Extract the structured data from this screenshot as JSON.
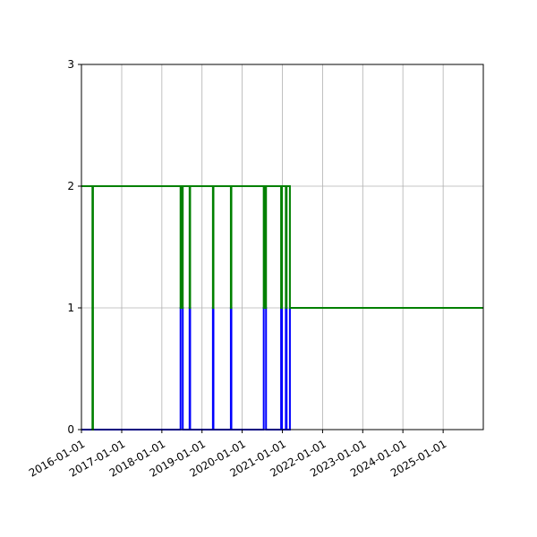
{
  "chart_data": {
    "type": "line",
    "title": "",
    "xlabel": "",
    "ylabel": "",
    "xlim": [
      "2016-01-01",
      "2026-01-01"
    ],
    "ylim": [
      0,
      3
    ],
    "grid": true,
    "x_ticks": [
      "2016-01-01",
      "2017-01-01",
      "2018-01-01",
      "2019-01-01",
      "2020-01-01",
      "2021-01-01",
      "2022-01-01",
      "2023-01-01",
      "2024-01-01",
      "2025-01-01"
    ],
    "y_ticks": [
      0,
      1,
      2,
      3
    ],
    "series": [
      {
        "color": "#0000ff",
        "drawstyle": "steps-post",
        "points": [
          [
            "2016-01-01",
            0
          ],
          [
            "2016-04-10",
            0
          ],
          [
            "2018-06-20",
            0
          ],
          [
            "2018-06-20",
            1
          ],
          [
            "2018-07-10",
            1
          ],
          [
            "2018-07-10",
            0
          ],
          [
            "2018-09-10",
            0
          ],
          [
            "2018-09-10",
            1
          ],
          [
            "2018-09-15",
            1
          ],
          [
            "2018-09-15",
            0
          ],
          [
            "2019-04-10",
            0
          ],
          [
            "2019-04-10",
            1
          ],
          [
            "2019-04-15",
            1
          ],
          [
            "2019-04-15",
            0
          ],
          [
            "2019-09-20",
            0
          ],
          [
            "2019-09-20",
            1
          ],
          [
            "2019-09-25",
            1
          ],
          [
            "2019-09-25",
            0
          ],
          [
            "2020-07-15",
            0
          ],
          [
            "2020-07-15",
            1
          ],
          [
            "2020-08-05",
            1
          ],
          [
            "2020-08-05",
            0
          ],
          [
            "2020-12-20",
            0
          ],
          [
            "2020-12-20",
            1
          ],
          [
            "2020-12-28",
            1
          ],
          [
            "2020-12-28",
            0
          ],
          [
            "2021-02-01",
            0
          ],
          [
            "2021-02-01",
            1
          ],
          [
            "2021-02-08",
            1
          ],
          [
            "2021-02-08",
            0
          ],
          [
            "2021-03-10",
            0
          ],
          [
            "2021-03-10",
            1
          ]
        ]
      },
      {
        "color": "#008000",
        "drawstyle": "steps-post",
        "points": [
          [
            "2016-01-01",
            2
          ],
          [
            "2016-04-10",
            2
          ],
          [
            "2016-04-10",
            0
          ],
          [
            "2016-04-15",
            0
          ],
          [
            "2016-04-15",
            2
          ],
          [
            "2018-06-20",
            2
          ],
          [
            "2018-06-20",
            1
          ],
          [
            "2018-06-25",
            1
          ],
          [
            "2018-06-25",
            2
          ],
          [
            "2018-06-28",
            2
          ],
          [
            "2018-06-28",
            1
          ],
          [
            "2018-07-02",
            1
          ],
          [
            "2018-07-02",
            2
          ],
          [
            "2018-07-05",
            2
          ],
          [
            "2018-07-05",
            1
          ],
          [
            "2018-07-10",
            1
          ],
          [
            "2018-07-10",
            2
          ],
          [
            "2018-09-10",
            2
          ],
          [
            "2018-09-10",
            1
          ],
          [
            "2018-09-15",
            1
          ],
          [
            "2018-09-15",
            2
          ],
          [
            "2019-04-10",
            2
          ],
          [
            "2019-04-10",
            1
          ],
          [
            "2019-04-15",
            1
          ],
          [
            "2019-04-15",
            2
          ],
          [
            "2019-09-20",
            2
          ],
          [
            "2019-09-20",
            1
          ],
          [
            "2019-09-25",
            1
          ],
          [
            "2019-09-25",
            2
          ],
          [
            "2020-07-15",
            2
          ],
          [
            "2020-07-15",
            1
          ],
          [
            "2020-07-22",
            1
          ],
          [
            "2020-07-22",
            2
          ],
          [
            "2020-07-28",
            2
          ],
          [
            "2020-07-28",
            1
          ],
          [
            "2020-08-05",
            1
          ],
          [
            "2020-08-05",
            2
          ],
          [
            "2020-12-20",
            2
          ],
          [
            "2020-12-20",
            1
          ],
          [
            "2020-12-28",
            1
          ],
          [
            "2020-12-28",
            2
          ],
          [
            "2021-02-01",
            2
          ],
          [
            "2021-02-01",
            1
          ],
          [
            "2021-02-08",
            1
          ],
          [
            "2021-02-08",
            2
          ],
          [
            "2021-03-10",
            2
          ],
          [
            "2021-03-10",
            1
          ],
          [
            "2026-01-01",
            1
          ]
        ]
      }
    ]
  }
}
